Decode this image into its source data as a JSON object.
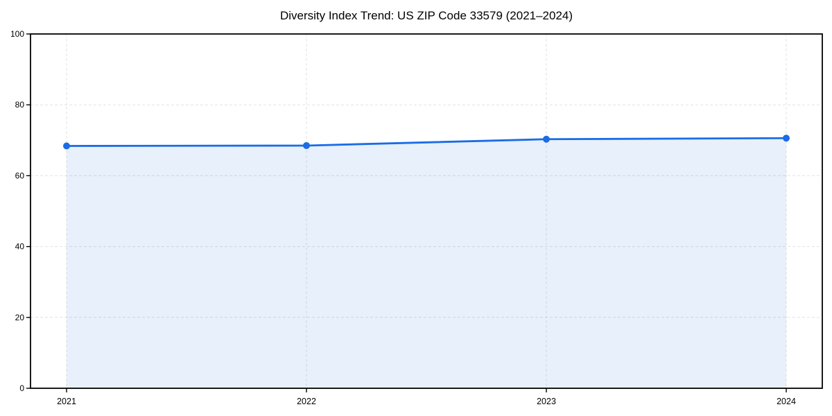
{
  "figure": {
    "background_color": "#ffffff"
  },
  "chart_data": {
    "type": "area",
    "title": "Diversity Index Trend: US ZIP Code 33579 (2021–2024)",
    "categories": [
      "2021",
      "2022",
      "2023",
      "2024"
    ],
    "series": [
      {
        "name": "Diversity Index",
        "values": [
          68.4,
          68.5,
          70.3,
          70.6
        ]
      }
    ],
    "xlabel": "",
    "ylabel": "",
    "ylim": [
      0,
      100
    ],
    "yticks": [
      0,
      20,
      40,
      60,
      80,
      100
    ],
    "grid": true,
    "grid_style": "dashed",
    "grid_color": "#e2e2e2",
    "legend": false,
    "line_color": "#1b6ce5",
    "marker": "circle",
    "marker_color": "#1b6ce5",
    "fill_color": "#1b6ce5",
    "fill_opacity": 0.1,
    "spine_color": "#000000",
    "tick_label_color": "#000000"
  }
}
